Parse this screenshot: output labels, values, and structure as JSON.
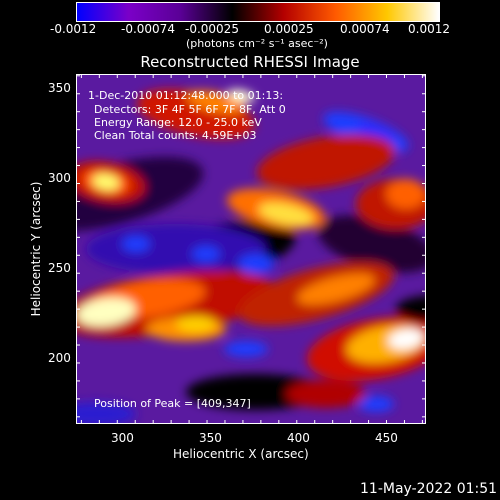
{
  "colorbar": {
    "tick_labels": [
      "-0.0012",
      "-0.00074",
      "-0.00025",
      "0.00025",
      "0.00074",
      "0.0012"
    ],
    "units": "(photons cm⁻² s⁻¹ asec⁻²)",
    "range": [
      -0.0012,
      0.0012
    ],
    "palette": [
      "#0000ff",
      "#7b00c8",
      "#5a0096",
      "#000000",
      "#b40000",
      "#ff5a00",
      "#ffc800",
      "#ffffff"
    ]
  },
  "plot": {
    "title": "Reconstructed RHESSI Image",
    "xlabel": "Heliocentric X (arcsec)",
    "ylabel": "Heliocentric Y (arcsec)",
    "x_ticks": [
      "300",
      "350",
      "400",
      "450"
    ],
    "y_ticks": [
      "200",
      "250",
      "300",
      "350"
    ],
    "xlim": [
      272,
      467
    ],
    "ylim": [
      161,
      356
    ]
  },
  "overlay": {
    "time_range": "1-Dec-2010 01:12:48.000 to 01:13:",
    "detectors": "Detectors: 3F 4F 5F 6F 7F 8F, Att 0",
    "energy": "Energy Range: 12.0 - 25.0 keV",
    "clean": "Clean     Total counts: 4.59E+03",
    "peak": "Position of Peak = [409,347]"
  },
  "footer": {
    "timestamp": "11-May-2022 01:51"
  }
}
